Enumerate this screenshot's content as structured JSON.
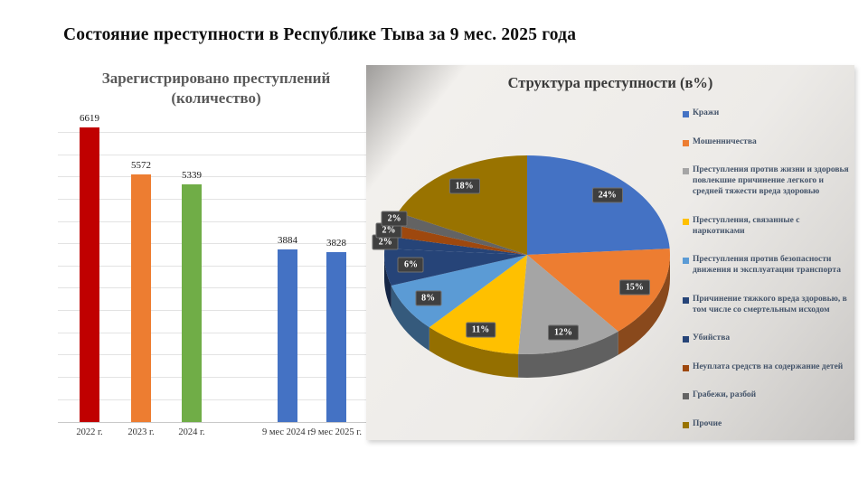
{
  "page": {
    "title": "Состояние преступности  в Республике Тыва за  9 мес. 2025 года"
  },
  "chart_data": [
    {
      "type": "bar",
      "title_line1": "Зарегистрировано преступлений",
      "title_line2": "(количество)",
      "categories": [
        "2022 г.",
        "2023 г.",
        "2024 г.",
        "9 мес 2024 г.",
        "9 мес 2025 г."
      ],
      "values": [
        6619,
        5572,
        5339,
        3884,
        3828
      ],
      "colors": [
        "#C00000",
        "#ED7D31",
        "#70AD47",
        "#4472C4",
        "#4472C4"
      ],
      "ylim": [
        0,
        6800
      ],
      "gridline_step": 500,
      "grid": true,
      "value_labels": true
    },
    {
      "type": "pie",
      "title": "Структура преступности (в%)",
      "style": "3d",
      "start_angle_deg": 0,
      "direction": "clockwise",
      "legend_position": "right",
      "slices": [
        {
          "label": "Кражи",
          "value": 24,
          "color": "#4472C4"
        },
        {
          "label": "Мошенничества",
          "value": 15,
          "color": "#ED7D31"
        },
        {
          "label": "Преступления против жизни и здоровья повлекшие причинение легкого и средней тяжести вреда здоровью",
          "value": 12,
          "color": "#A5A5A5"
        },
        {
          "label": "Преступления, связанные с  наркотиками",
          "value": 11,
          "color": "#FFC000"
        },
        {
          "label": "Преступления против  безопасности движения и эксплуатации транспорта",
          "value": 8,
          "color": "#5B9BD5"
        },
        {
          "label": "Причинение тяжкого вреда  здоровью, в том числе со смертельным исходом",
          "value": 6,
          "color": "#264478",
          "_note": ""
        },
        {
          "label": "Убийства",
          "value": 2,
          "color": "#264478"
        },
        {
          "label": "Неуплата средств на содержание детей",
          "value": 2,
          "color": "#9E480E"
        },
        {
          "label": "Грабежи, разбой",
          "value": 2,
          "color": "#636363"
        },
        {
          "label": "Прочие",
          "value": 18,
          "color": "#997300"
        }
      ]
    }
  ]
}
